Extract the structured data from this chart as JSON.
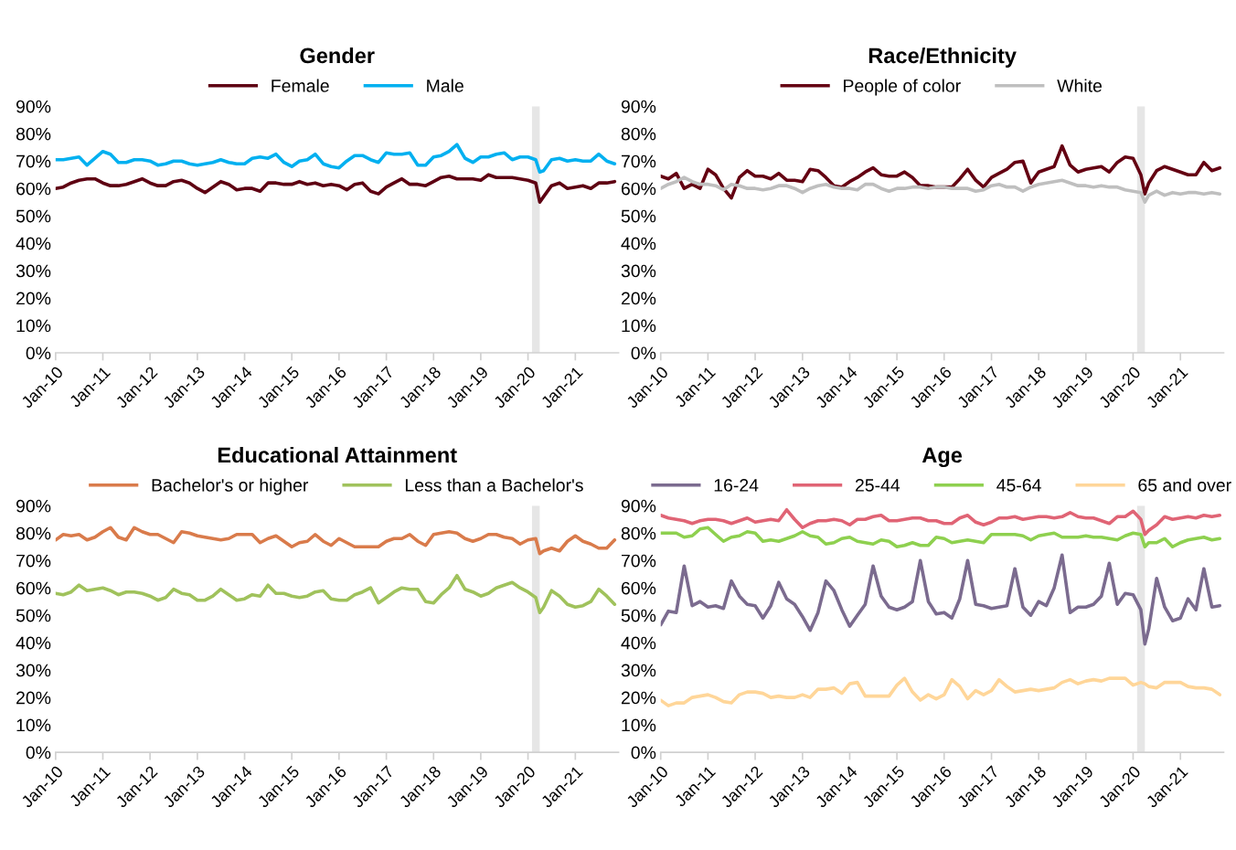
{
  "chart_data": [
    {
      "type": "line",
      "title": "Gender",
      "legend": "top",
      "grid": false,
      "marker": "none",
      "line_style": "solid",
      "x": [
        "2010-01",
        "2010-03",
        "2010-05",
        "2010-07",
        "2010-09",
        "2010-11",
        "2011-01",
        "2011-03",
        "2011-05",
        "2011-07",
        "2011-09",
        "2011-11",
        "2012-01",
        "2012-03",
        "2012-05",
        "2012-07",
        "2012-09",
        "2012-11",
        "2013-01",
        "2013-03",
        "2013-05",
        "2013-07",
        "2013-09",
        "2013-11",
        "2014-01",
        "2014-03",
        "2014-05",
        "2014-07",
        "2014-09",
        "2014-11",
        "2015-01",
        "2015-03",
        "2015-05",
        "2015-07",
        "2015-09",
        "2015-11",
        "2016-01",
        "2016-03",
        "2016-05",
        "2016-07",
        "2016-09",
        "2016-11",
        "2017-01",
        "2017-03",
        "2017-05",
        "2017-07",
        "2017-09",
        "2017-11",
        "2018-01",
        "2018-03",
        "2018-05",
        "2018-07",
        "2018-09",
        "2018-11",
        "2019-01",
        "2019-03",
        "2019-05",
        "2019-07",
        "2019-09",
        "2019-11",
        "2020-01",
        "2020-03",
        "2020-04",
        "2020-05",
        "2020-07",
        "2020-09",
        "2020-11",
        "2021-01",
        "2021-03",
        "2021-05",
        "2021-07",
        "2021-09",
        "2021-11"
      ],
      "xlim": [
        "2010-01",
        "2021-12"
      ],
      "xticks": [
        {
          "value": "2010-01",
          "label": "Jan-10"
        },
        {
          "value": "2011-01",
          "label": "Jan-11"
        },
        {
          "value": "2012-01",
          "label": "Jan-12"
        },
        {
          "value": "2013-01",
          "label": "Jan-13"
        },
        {
          "value": "2014-01",
          "label": "Jan-14"
        },
        {
          "value": "2015-01",
          "label": "Jan-15"
        },
        {
          "value": "2016-01",
          "label": "Jan-16"
        },
        {
          "value": "2017-01",
          "label": "Jan-17"
        },
        {
          "value": "2018-01",
          "label": "Jan-18"
        },
        {
          "value": "2019-01",
          "label": "Jan-19"
        },
        {
          "value": "2020-01",
          "label": "Jan-20"
        },
        {
          "value": "2021-01",
          "label": "Jan-21"
        }
      ],
      "ylim": [
        0,
        90
      ],
      "yticks": [
        {
          "value": 0,
          "label": "0%"
        },
        {
          "value": 10,
          "label": "10%"
        },
        {
          "value": 20,
          "label": "20%"
        },
        {
          "value": 30,
          "label": "30%"
        },
        {
          "value": 40,
          "label": "40%"
        },
        {
          "value": 50,
          "label": "50%"
        },
        {
          "value": 60,
          "label": "60%"
        },
        {
          "value": 70,
          "label": "70%"
        },
        {
          "value": 80,
          "label": "80%"
        },
        {
          "value": 90,
          "label": "90%"
        }
      ],
      "bands": [
        {
          "axis": "x",
          "from": "2020-02",
          "to": "2020-04",
          "color": "#e6e6e6"
        }
      ],
      "series": [
        {
          "name": "Female",
          "color": "#5e0012",
          "values": [
            60,
            60.5,
            62,
            63,
            63.5,
            63.5,
            62,
            61,
            61,
            61.5,
            62.5,
            63.5,
            62,
            61,
            61,
            62.5,
            63,
            62,
            60,
            58.5,
            60.5,
            62.5,
            61.5,
            59.5,
            60,
            60,
            59,
            62,
            62,
            61.5,
            61.5,
            62.5,
            61.5,
            62,
            61,
            61.5,
            61,
            59.5,
            61.5,
            62,
            59,
            58,
            60.5,
            62,
            63.5,
            61.5,
            61.5,
            61,
            62.5,
            64,
            64.5,
            63.5,
            63.5,
            63.5,
            63,
            65,
            64,
            64,
            64,
            63.5,
            63,
            62,
            55,
            57,
            61,
            62,
            60,
            60.5,
            61,
            60,
            62,
            62,
            62.5
          ]
        },
        {
          "name": "Male",
          "color": "#00b0f0",
          "values": [
            70.5,
            70.5,
            71,
            71.5,
            68.5,
            71,
            73.5,
            72.5,
            69.5,
            69.5,
            70.5,
            70.5,
            70,
            68.5,
            69,
            70,
            70,
            69,
            68.5,
            69,
            69.5,
            70.5,
            69.5,
            69,
            69,
            71,
            71.5,
            71,
            72.5,
            69.5,
            68,
            70,
            70.5,
            72.5,
            69,
            68,
            67.5,
            70,
            72,
            72,
            70.5,
            69.5,
            73,
            72.5,
            72.5,
            73,
            68.5,
            68.5,
            71.5,
            72,
            73.5,
            76,
            71,
            69.5,
            71.5,
            71.5,
            72.5,
            73,
            70.5,
            71.5,
            71.5,
            70.5,
            66,
            66.5,
            70.5,
            71,
            70,
            70.5,
            70,
            70,
            72.5,
            70,
            69
          ]
        }
      ]
    },
    {
      "type": "line",
      "title": "Race/Ethnicity",
      "legend": "top",
      "grid": false,
      "marker": "none",
      "line_style": "solid",
      "x": [
        "2010-01",
        "2010-03",
        "2010-05",
        "2010-07",
        "2010-09",
        "2010-11",
        "2011-01",
        "2011-03",
        "2011-05",
        "2011-07",
        "2011-09",
        "2011-11",
        "2012-01",
        "2012-03",
        "2012-05",
        "2012-07",
        "2012-09",
        "2012-11",
        "2013-01",
        "2013-03",
        "2013-05",
        "2013-07",
        "2013-09",
        "2013-11",
        "2014-01",
        "2014-03",
        "2014-05",
        "2014-07",
        "2014-09",
        "2014-11",
        "2015-01",
        "2015-03",
        "2015-05",
        "2015-07",
        "2015-09",
        "2015-11",
        "2016-01",
        "2016-03",
        "2016-05",
        "2016-07",
        "2016-09",
        "2016-11",
        "2017-01",
        "2017-03",
        "2017-05",
        "2017-07",
        "2017-09",
        "2017-11",
        "2018-01",
        "2018-03",
        "2018-05",
        "2018-07",
        "2018-09",
        "2018-11",
        "2019-01",
        "2019-03",
        "2019-05",
        "2019-07",
        "2019-09",
        "2019-11",
        "2020-01",
        "2020-03",
        "2020-04",
        "2020-05",
        "2020-07",
        "2020-09",
        "2020-11",
        "2021-01",
        "2021-03",
        "2021-05",
        "2021-07",
        "2021-09",
        "2021-11"
      ],
      "xlim": [
        "2010-01",
        "2021-12"
      ],
      "xticks": [
        {
          "value": "2010-01",
          "label": "Jan-10"
        },
        {
          "value": "2011-01",
          "label": "Jan-11"
        },
        {
          "value": "2012-01",
          "label": "Jan-12"
        },
        {
          "value": "2013-01",
          "label": "Jan-13"
        },
        {
          "value": "2014-01",
          "label": "Jan-14"
        },
        {
          "value": "2015-01",
          "label": "Jan-15"
        },
        {
          "value": "2016-01",
          "label": "Jan-16"
        },
        {
          "value": "2017-01",
          "label": "Jan-17"
        },
        {
          "value": "2018-01",
          "label": "Jan-18"
        },
        {
          "value": "2019-01",
          "label": "Jan-19"
        },
        {
          "value": "2020-01",
          "label": "Jan-20"
        },
        {
          "value": "2021-01",
          "label": "Jan-21"
        }
      ],
      "ylim": [
        0,
        90
      ],
      "yticks": [
        {
          "value": 0,
          "label": "0%"
        },
        {
          "value": 10,
          "label": "10%"
        },
        {
          "value": 20,
          "label": "20%"
        },
        {
          "value": 30,
          "label": "30%"
        },
        {
          "value": 40,
          "label": "40%"
        },
        {
          "value": 50,
          "label": "50%"
        },
        {
          "value": 60,
          "label": "60%"
        },
        {
          "value": 70,
          "label": "70%"
        },
        {
          "value": 80,
          "label": "80%"
        },
        {
          "value": 90,
          "label": "90%"
        }
      ],
      "bands": [
        {
          "axis": "x",
          "from": "2020-02",
          "to": "2020-04",
          "color": "#e6e6e6"
        }
      ],
      "series": [
        {
          "name": "People of color",
          "color": "#640012",
          "values": [
            64.5,
            63.5,
            65.5,
            60,
            61.5,
            60,
            67,
            65,
            60,
            56.5,
            64,
            66.5,
            64.5,
            64.5,
            63.5,
            65.5,
            63,
            63,
            62.5,
            67,
            66.5,
            64,
            61,
            60.5,
            62.5,
            64,
            66,
            67.5,
            65,
            64.5,
            64.5,
            66,
            64,
            61,
            61,
            60.5,
            60.5,
            60.5,
            63.5,
            67,
            63,
            60.5,
            64,
            65.5,
            67,
            69.5,
            70,
            62,
            66,
            67,
            68,
            75.5,
            68.5,
            66,
            67,
            67.5,
            68,
            66,
            69.5,
            71.5,
            71,
            65,
            58,
            62,
            66.5,
            68,
            67,
            66,
            65,
            65,
            69.5,
            66.5,
            67.5
          ]
        },
        {
          "name": "White",
          "color": "#bfbfbf",
          "values": [
            60,
            61.5,
            62.5,
            64,
            62.5,
            61.5,
            61.5,
            61,
            59.5,
            61.5,
            61,
            60,
            60,
            59.5,
            60,
            61,
            61,
            60,
            58.5,
            60,
            61,
            61.5,
            60.5,
            60,
            60,
            59.5,
            61.5,
            61.5,
            60,
            59,
            60,
            60,
            60.5,
            60.5,
            60,
            60.5,
            60.5,
            60,
            60,
            60,
            59,
            59.5,
            61,
            61.5,
            60.5,
            60.5,
            59,
            60.5,
            61.5,
            62,
            62.5,
            63,
            62,
            61,
            61,
            60.5,
            61,
            60.5,
            60.5,
            59.5,
            59,
            58.5,
            55,
            57.5,
            59,
            57.5,
            58.5,
            58,
            58.5,
            58.5,
            58,
            58.5,
            58
          ]
        }
      ]
    },
    {
      "type": "line",
      "title": "Educational Attainment",
      "legend": "top",
      "grid": false,
      "marker": "none",
      "line_style": "solid",
      "x": [
        "2010-01",
        "2010-03",
        "2010-05",
        "2010-07",
        "2010-09",
        "2010-11",
        "2011-01",
        "2011-03",
        "2011-05",
        "2011-07",
        "2011-09",
        "2011-11",
        "2012-01",
        "2012-03",
        "2012-05",
        "2012-07",
        "2012-09",
        "2012-11",
        "2013-01",
        "2013-03",
        "2013-05",
        "2013-07",
        "2013-09",
        "2013-11",
        "2014-01",
        "2014-03",
        "2014-05",
        "2014-07",
        "2014-09",
        "2014-11",
        "2015-01",
        "2015-03",
        "2015-05",
        "2015-07",
        "2015-09",
        "2015-11",
        "2016-01",
        "2016-03",
        "2016-05",
        "2016-07",
        "2016-09",
        "2016-11",
        "2017-01",
        "2017-03",
        "2017-05",
        "2017-07",
        "2017-09",
        "2017-11",
        "2018-01",
        "2018-03",
        "2018-05",
        "2018-07",
        "2018-09",
        "2018-11",
        "2019-01",
        "2019-03",
        "2019-05",
        "2019-07",
        "2019-09",
        "2019-11",
        "2020-01",
        "2020-03",
        "2020-04",
        "2020-05",
        "2020-07",
        "2020-09",
        "2020-11",
        "2021-01",
        "2021-03",
        "2021-05",
        "2021-07",
        "2021-09",
        "2021-11"
      ],
      "xlim": [
        "2010-01",
        "2021-12"
      ],
      "xticks": [
        {
          "value": "2010-01",
          "label": "Jan-10"
        },
        {
          "value": "2011-01",
          "label": "Jan-11"
        },
        {
          "value": "2012-01",
          "label": "Jan-12"
        },
        {
          "value": "2013-01",
          "label": "Jan-13"
        },
        {
          "value": "2014-01",
          "label": "Jan-14"
        },
        {
          "value": "2015-01",
          "label": "Jan-15"
        },
        {
          "value": "2016-01",
          "label": "Jan-16"
        },
        {
          "value": "2017-01",
          "label": "Jan-17"
        },
        {
          "value": "2018-01",
          "label": "Jan-18"
        },
        {
          "value": "2019-01",
          "label": "Jan-19"
        },
        {
          "value": "2020-01",
          "label": "Jan-20"
        },
        {
          "value": "2021-01",
          "label": "Jan-21"
        }
      ],
      "ylim": [
        0,
        90
      ],
      "yticks": [
        {
          "value": 0,
          "label": "0%"
        },
        {
          "value": 10,
          "label": "10%"
        },
        {
          "value": 20,
          "label": "20%"
        },
        {
          "value": 30,
          "label": "30%"
        },
        {
          "value": 40,
          "label": "40%"
        },
        {
          "value": 50,
          "label": "50%"
        },
        {
          "value": 60,
          "label": "60%"
        },
        {
          "value": 70,
          "label": "70%"
        },
        {
          "value": 80,
          "label": "80%"
        },
        {
          "value": 90,
          "label": "90%"
        }
      ],
      "bands": [
        {
          "axis": "x",
          "from": "2020-02",
          "to": "2020-04",
          "color": "#e6e6e6"
        }
      ],
      "series": [
        {
          "name": "Bachelor's or higher",
          "color": "#d97b4b",
          "values": [
            77.5,
            79.5,
            79,
            79.5,
            77.5,
            78.5,
            80.5,
            82,
            78.5,
            77.5,
            82,
            80.5,
            79.5,
            79.5,
            78,
            76.5,
            80.5,
            80,
            79,
            78.5,
            78,
            77.5,
            78,
            79.5,
            79.5,
            79.5,
            76.5,
            78,
            79,
            77,
            75,
            76.5,
            77,
            79.5,
            77,
            75.5,
            78,
            76.5,
            75,
            75,
            75,
            75,
            77,
            78,
            78,
            79.5,
            77,
            75.5,
            79.5,
            80,
            80.5,
            80,
            78,
            77,
            78,
            79.5,
            79.5,
            78.5,
            78,
            76,
            77.5,
            78,
            72.5,
            73.5,
            74.5,
            73.5,
            77,
            79,
            77,
            76,
            74.5,
            74.5,
            77.5
          ]
        },
        {
          "name": "Less than a Bachelor's",
          "color": "#a0c25c",
          "values": [
            58,
            57.5,
            58.5,
            61,
            59,
            59.5,
            60,
            59,
            57.5,
            58.5,
            58.5,
            58,
            57,
            55.5,
            56.5,
            59.5,
            58,
            57.5,
            55.5,
            55.5,
            57,
            59.5,
            57.5,
            55.5,
            56,
            57.5,
            57,
            61,
            58,
            58,
            57,
            56.5,
            57,
            58.5,
            59,
            56,
            55.5,
            55.5,
            57.5,
            58.5,
            60,
            54.5,
            56.5,
            58.5,
            60,
            59.5,
            59.5,
            55,
            54.5,
            57.5,
            60,
            64.5,
            59.5,
            58.5,
            57,
            58,
            60,
            61,
            62,
            60,
            58.5,
            56.5,
            51,
            53,
            59,
            57,
            54,
            53,
            53.5,
            55,
            59.5,
            57,
            54
          ]
        }
      ]
    },
    {
      "type": "line",
      "title": "Age",
      "legend": "top",
      "grid": false,
      "marker": "none",
      "line_style": "solid",
      "x": [
        "2010-01",
        "2010-03",
        "2010-05",
        "2010-07",
        "2010-09",
        "2010-11",
        "2011-01",
        "2011-03",
        "2011-05",
        "2011-07",
        "2011-09",
        "2011-11",
        "2012-01",
        "2012-03",
        "2012-05",
        "2012-07",
        "2012-09",
        "2012-11",
        "2013-01",
        "2013-03",
        "2013-05",
        "2013-07",
        "2013-09",
        "2013-11",
        "2014-01",
        "2014-03",
        "2014-05",
        "2014-07",
        "2014-09",
        "2014-11",
        "2015-01",
        "2015-03",
        "2015-05",
        "2015-07",
        "2015-09",
        "2015-11",
        "2016-01",
        "2016-03",
        "2016-05",
        "2016-07",
        "2016-09",
        "2016-11",
        "2017-01",
        "2017-03",
        "2017-05",
        "2017-07",
        "2017-09",
        "2017-11",
        "2018-01",
        "2018-03",
        "2018-05",
        "2018-07",
        "2018-09",
        "2018-11",
        "2019-01",
        "2019-03",
        "2019-05",
        "2019-07",
        "2019-09",
        "2019-11",
        "2020-01",
        "2020-03",
        "2020-04",
        "2020-05",
        "2020-07",
        "2020-09",
        "2020-11",
        "2021-01",
        "2021-03",
        "2021-05",
        "2021-07",
        "2021-09",
        "2021-11"
      ],
      "xlim": [
        "2010-01",
        "2021-12"
      ],
      "xticks": [
        {
          "value": "2010-01",
          "label": "Jan-10"
        },
        {
          "value": "2011-01",
          "label": "Jan-11"
        },
        {
          "value": "2012-01",
          "label": "Jan-12"
        },
        {
          "value": "2013-01",
          "label": "Jan-13"
        },
        {
          "value": "2014-01",
          "label": "Jan-14"
        },
        {
          "value": "2015-01",
          "label": "Jan-15"
        },
        {
          "value": "2016-01",
          "label": "Jan-16"
        },
        {
          "value": "2017-01",
          "label": "Jan-17"
        },
        {
          "value": "2018-01",
          "label": "Jan-18"
        },
        {
          "value": "2019-01",
          "label": "Jan-19"
        },
        {
          "value": "2020-01",
          "label": "Jan-20"
        },
        {
          "value": "2021-01",
          "label": "Jan-21"
        }
      ],
      "ylim": [
        0,
        90
      ],
      "yticks": [
        {
          "value": 0,
          "label": "0%"
        },
        {
          "value": 10,
          "label": "10%"
        },
        {
          "value": 20,
          "label": "20%"
        },
        {
          "value": 30,
          "label": "30%"
        },
        {
          "value": 40,
          "label": "40%"
        },
        {
          "value": 50,
          "label": "50%"
        },
        {
          "value": 60,
          "label": "60%"
        },
        {
          "value": 70,
          "label": "70%"
        },
        {
          "value": 80,
          "label": "80%"
        },
        {
          "value": 90,
          "label": "90%"
        }
      ],
      "bands": [
        {
          "axis": "x",
          "from": "2020-02",
          "to": "2020-04",
          "color": "#e6e6e6"
        }
      ],
      "series": [
        {
          "name": "16-24",
          "color": "#7b6b8f",
          "values": [
            46.5,
            51.5,
            51,
            68,
            53.5,
            55,
            53,
            53.5,
            52.5,
            62.5,
            57,
            54,
            53.5,
            49,
            53.5,
            62,
            56,
            54,
            49.5,
            44.5,
            51,
            62.5,
            59,
            52,
            46,
            50,
            54,
            68,
            57,
            53,
            52,
            53,
            55,
            70,
            55,
            50.5,
            51,
            49,
            56,
            70,
            54,
            53.5,
            52.5,
            53,
            53.5,
            67,
            53,
            50,
            55,
            53.5,
            60,
            72,
            51,
            53,
            53,
            54,
            57,
            69,
            54,
            58,
            57.5,
            52,
            39.5,
            45,
            63.5,
            53,
            48,
            49,
            56,
            52,
            67,
            53,
            53.5
          ]
        },
        {
          "name": "25-44",
          "color": "#e06475",
          "values": [
            86.5,
            85.5,
            85,
            84.5,
            83.5,
            84.5,
            85,
            85,
            84.5,
            83.5,
            84.5,
            85.5,
            84,
            84.5,
            85,
            84.5,
            88.5,
            85,
            82,
            83.5,
            84.5,
            84.5,
            85,
            84.5,
            83,
            85,
            85,
            86,
            86.5,
            84.5,
            84.5,
            85,
            85.5,
            85.5,
            84.5,
            84.5,
            83.5,
            83.5,
            85.5,
            86.5,
            84,
            83,
            84,
            85.5,
            85.5,
            86,
            85,
            85.5,
            86,
            86,
            85.5,
            86,
            87.5,
            86,
            85.5,
            85.5,
            84.5,
            83.5,
            86,
            86,
            88,
            85,
            79.5,
            81,
            83,
            86,
            85,
            85.5,
            86,
            85.5,
            86.5,
            86,
            86.5
          ]
        },
        {
          "name": "45-64",
          "color": "#8ed04f",
          "values": [
            80,
            80,
            80,
            78.5,
            79,
            81.5,
            82,
            79.5,
            77,
            78.5,
            79,
            80.5,
            80,
            77,
            77.5,
            77,
            78,
            79,
            80.5,
            79,
            78.5,
            76,
            76.5,
            78,
            78.5,
            77,
            76.5,
            76,
            77.5,
            77,
            75,
            75.5,
            76.5,
            75.5,
            75.5,
            78.5,
            78,
            76.5,
            77,
            77.5,
            77,
            76.5,
            79.5,
            79.5,
            79.5,
            79.5,
            79,
            77.5,
            79,
            79.5,
            80,
            78.5,
            78.5,
            78.5,
            79,
            78.5,
            78.5,
            78,
            77.5,
            79,
            80,
            79.5,
            75,
            76.5,
            76.5,
            78,
            75,
            76.5,
            77.5,
            78,
            78.5,
            77.5,
            78
          ]
        },
        {
          "name": "65 and over",
          "color": "#ffd699",
          "values": [
            19,
            17,
            18,
            18,
            20,
            20.5,
            21,
            20,
            18.5,
            18,
            21,
            22,
            22,
            21.5,
            20,
            20.5,
            20,
            20,
            21,
            20,
            23,
            23,
            23.5,
            21.5,
            25,
            25.5,
            20.5,
            20.5,
            20.5,
            20.5,
            24.5,
            27,
            22,
            19,
            21,
            19.5,
            21,
            26.5,
            24,
            19.5,
            22.5,
            21,
            22.5,
            26.5,
            24,
            22,
            22.5,
            23,
            22.5,
            23,
            23.5,
            25.5,
            26.5,
            25,
            26,
            26.5,
            26,
            27,
            27,
            27,
            24.5,
            25.5,
            25,
            24,
            23.5,
            25.5,
            25.5,
            25.5,
            24,
            23.5,
            23.5,
            23,
            21
          ]
        }
      ]
    }
  ]
}
